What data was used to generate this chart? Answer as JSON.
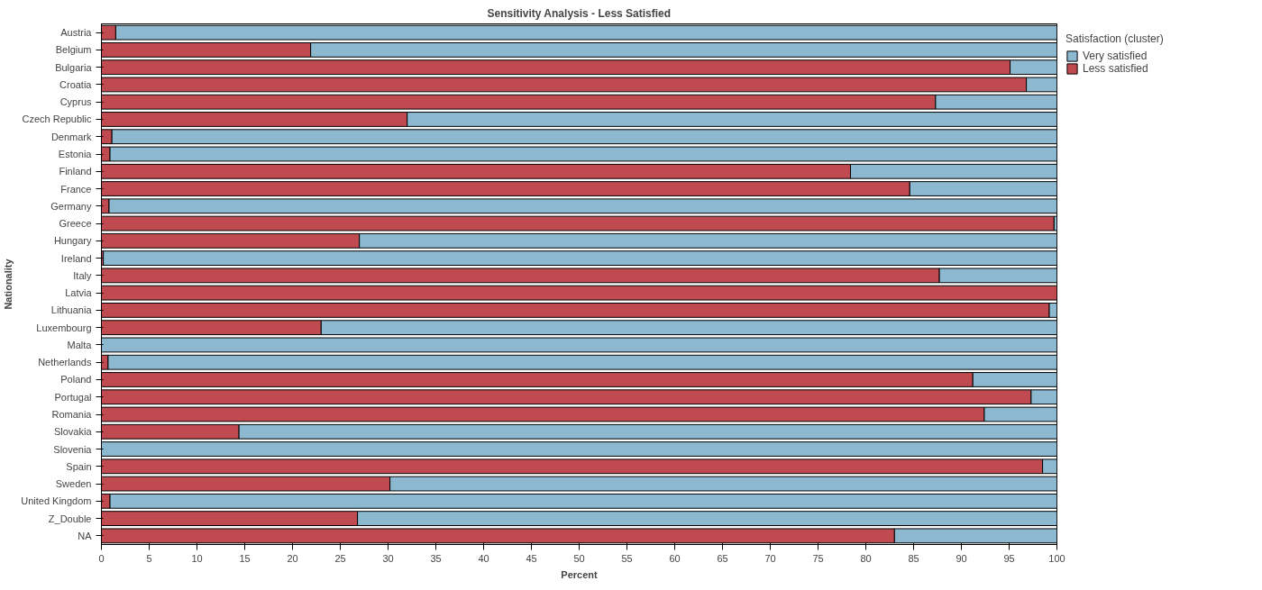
{
  "chart_data": {
    "type": "bar",
    "orientation": "horizontal",
    "stacked": true,
    "title": "Sensitivity Analysis - Less Satisfied",
    "xlabel": "Percent",
    "ylabel": "Nationality",
    "legend_title": "Satisfaction (cluster)",
    "legend": "top right",
    "grid": false,
    "categories": [
      "Austria",
      "Belgium",
      "Bulgaria",
      "Croatia",
      "Cyprus",
      "Czech Republic",
      "Denmark",
      "Estonia",
      "Finland",
      "France",
      "Germany",
      "Greece",
      "Hungary",
      "Ireland",
      "Italy",
      "Latvia",
      "Lithuania",
      "Luxembourg",
      "Malta",
      "Netherlands",
      "Poland",
      "Portugal",
      "Romania",
      "Slovakia",
      "Slovenia",
      "Spain",
      "Sweden",
      "United Kingdom",
      "Z_Double",
      "NA"
    ],
    "xlim": [
      0,
      100
    ],
    "xticks": [
      0,
      5,
      10,
      15,
      20,
      25,
      30,
      35,
      40,
      45,
      50,
      55,
      60,
      65,
      70,
      75,
      80,
      85,
      90,
      95,
      100
    ],
    "series": [
      {
        "name": "Less satisfied",
        "color": "#bf4a50",
        "values": [
          1.5,
          21.9,
          95.1,
          96.8,
          87.3,
          32.0,
          1.1,
          0.9,
          78.4,
          84.6,
          0.8,
          99.7,
          27.0,
          0.2,
          87.7,
          100,
          99.2,
          23.0,
          0,
          0.7,
          91.2,
          97.3,
          92.4,
          14.4,
          0,
          98.5,
          30.2,
          0.9,
          26.8,
          83.0
        ]
      },
      {
        "name": "Very satisfied",
        "color": "#8cb8d0",
        "values": [
          98.5,
          78.1,
          4.9,
          3.2,
          12.7,
          68.0,
          98.9,
          99.1,
          21.6,
          15.4,
          99.2,
          0.3,
          73.0,
          99.8,
          12.3,
          0,
          0.8,
          77.0,
          100,
          99.3,
          8.8,
          2.7,
          7.6,
          85.6,
          100,
          1.5,
          69.8,
          99.1,
          73.2,
          17.0
        ]
      }
    ]
  }
}
